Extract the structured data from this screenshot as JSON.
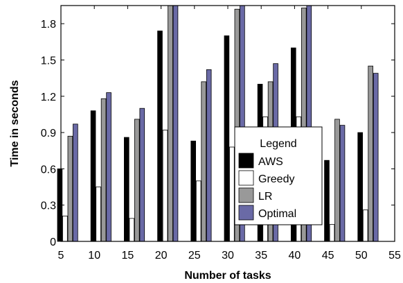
{
  "chart_data": {
    "type": "bar",
    "title": "",
    "xlabel": "Number of tasks",
    "ylabel": "Time in seconds",
    "xlim": [
      5,
      55
    ],
    "ylim": [
      0,
      1.95
    ],
    "x_ticks": [
      "5",
      "10",
      "15",
      "20",
      "25",
      "30",
      "35",
      "40",
      "45",
      "50",
      "55"
    ],
    "y_ticks": [
      "0",
      "0.3",
      "0.6",
      "0.9",
      "1.2",
      "1.5",
      "1.8"
    ],
    "categories": [
      6,
      11,
      16,
      21,
      26,
      31,
      36,
      41,
      46,
      51
    ],
    "grid": false,
    "legend": {
      "title": "Legend",
      "placement": "center-right"
    },
    "series": [
      {
        "name": "AWS",
        "color": "#000000",
        "values": [
          0.6,
          1.08,
          0.86,
          1.74,
          0.83,
          1.7,
          1.3,
          1.6,
          0.67,
          0.9
        ]
      },
      {
        "name": "Greedy",
        "color": "#ffffff",
        "values": [
          0.21,
          0.45,
          0.19,
          0.92,
          0.5,
          0.78,
          1.03,
          1.03,
          0.14,
          0.26
        ]
      },
      {
        "name": "LR",
        "color": "#999999",
        "values": [
          0.87,
          1.18,
          1.01,
          2.0,
          1.32,
          1.92,
          1.32,
          1.93,
          1.01,
          1.45
        ]
      },
      {
        "name": "Optimal",
        "color": "#6a6aa6",
        "values": [
          0.97,
          1.23,
          1.1,
          2.0,
          1.42,
          2.0,
          1.47,
          1.95,
          0.96,
          1.39
        ]
      }
    ]
  }
}
